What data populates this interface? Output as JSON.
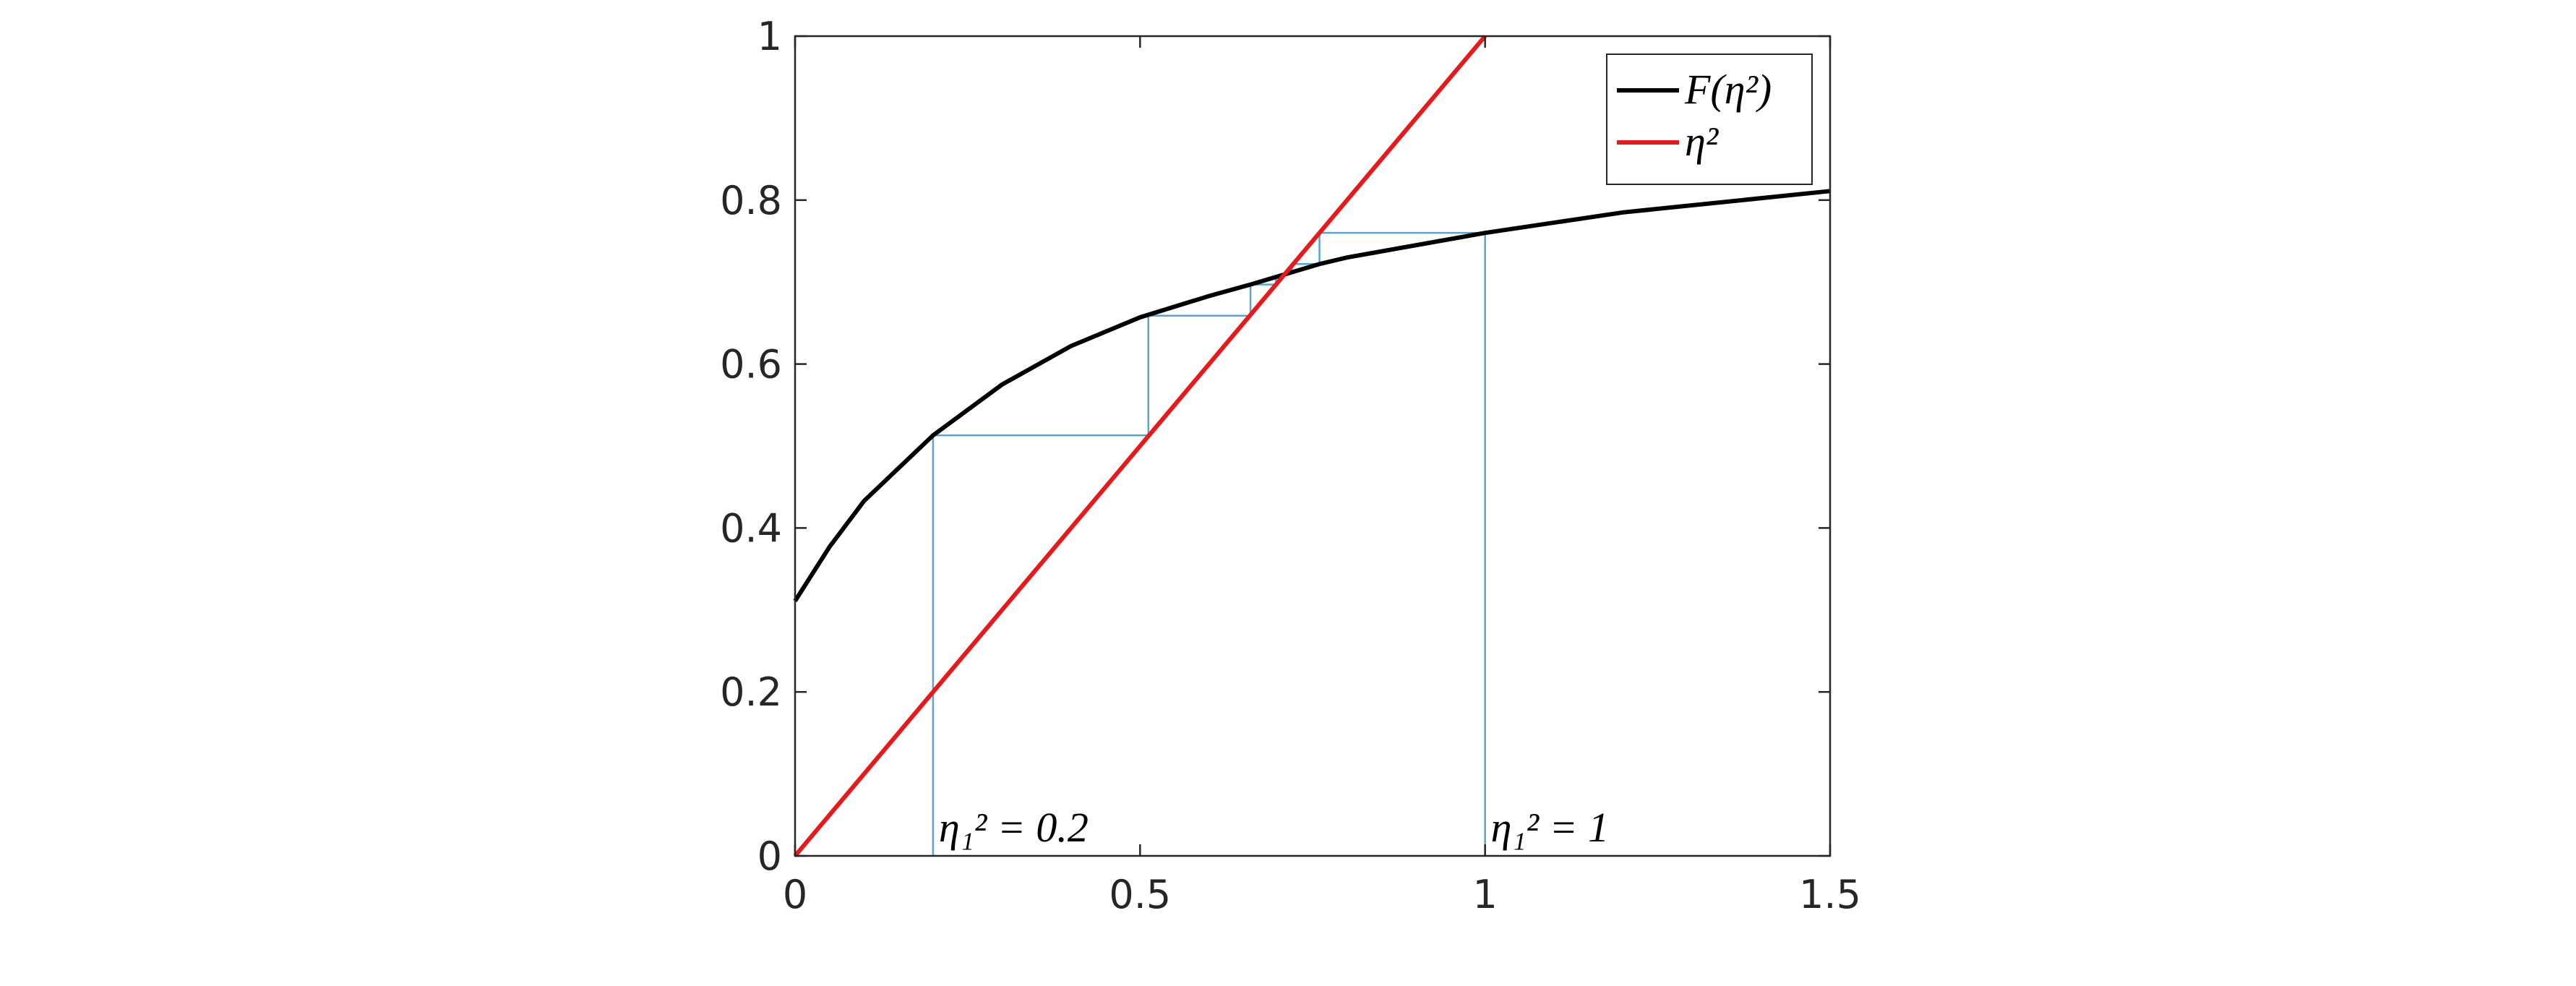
{
  "chart_data": {
    "type": "line",
    "xlim": [
      0,
      1.5
    ],
    "xticks": [
      0,
      0.5,
      1,
      1.5
    ],
    "ylim": [
      0,
      1
    ],
    "yticks": [
      0,
      0.2,
      0.4,
      0.6,
      0.8,
      1
    ],
    "legend": "top-right",
    "annotations": [
      "η₁² = 0.2",
      "η₁² = 1"
    ],
    "series": [
      {
        "name": "F(η²)",
        "color": "#000000",
        "x": [
          0,
          0.05,
          0.1,
          0.2,
          0.3,
          0.4,
          0.5,
          0.6,
          0.66,
          0.76,
          0.8,
          1,
          1.2,
          1.5
        ],
        "values": [
          0.311,
          0.377,
          0.433,
          0.513,
          0.575,
          0.622,
          0.657,
          0.683,
          0.697,
          0.722,
          0.73,
          0.76,
          0.785,
          0.811
        ]
      },
      {
        "name": "η²",
        "color": "#e41a1c",
        "x": [
          0,
          1
        ],
        "values": [
          0,
          1
        ]
      },
      {
        "color": "#5aa5cf",
        "x": [
          0.2,
          0.2,
          0.512,
          0.512,
          0.66,
          0.66,
          0.697,
          0.697,
          0.707
        ],
        "values": [
          0,
          0.513,
          0.513,
          0.659,
          0.659,
          0.697,
          0.697,
          0.707,
          0.707
        ]
      },
      {
        "color": "#5aa5cf",
        "x": [
          1,
          1,
          0.76,
          0.76,
          0.72,
          0.72
        ],
        "values": [
          0,
          0.76,
          0.76,
          0.722,
          0.722,
          0.713
        ]
      }
    ]
  }
}
